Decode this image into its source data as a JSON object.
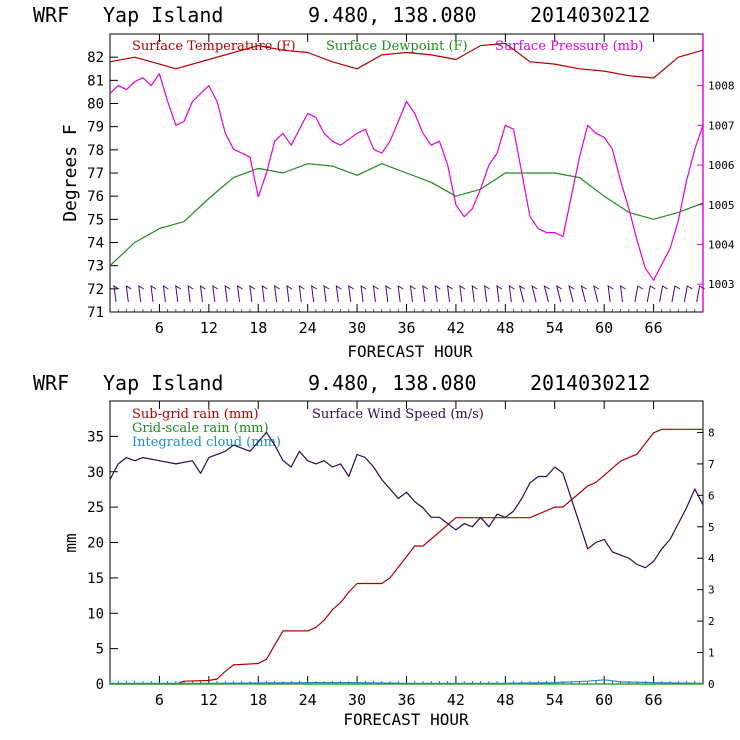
{
  "top": {
    "header": {
      "model": "WRF",
      "location": "Yap Island",
      "coords": "9.480, 138.080",
      "init": "2014030212"
    },
    "xlabel": "FORECAST HOUR",
    "ylabel": "Degrees F",
    "legend": [
      "Surface Temperature (F)",
      "Surface Dewpoint (F)",
      "Surface Pressure (mb)"
    ],
    "colors": {
      "temp": "#b00000",
      "dew": "#1f8a1f",
      "pres": "#e000e0",
      "barb": "#4b0082"
    }
  },
  "bottom": {
    "header": {
      "model": "WRF",
      "location": "Yap Island",
      "coords": "9.480, 138.080",
      "init": "2014030212"
    },
    "xlabel": "FORECAST HOUR",
    "ylabel": "mm",
    "legend": [
      "Sub-grid rain (mm)",
      "Grid-scale rain (mm)",
      "Integrated cloud (mm)",
      "Surface Wind Speed (m/s)"
    ],
    "colors": {
      "subgrid": "#b00000",
      "gridscale": "#1f8a1f",
      "cloud": "#1e90c8",
      "wind": "#2e0a4a"
    }
  },
  "chart_data": [
    {
      "type": "line",
      "title": "WRF Yap Island 9.480, 138.080 2014030212",
      "xlabel": "FORECAST HOUR",
      "ylabel": "Degrees F",
      "xlim": [
        0,
        72
      ],
      "ylim": [
        71,
        83
      ],
      "y2lim": [
        1002.3,
        1009.3
      ],
      "xticks": [
        "6",
        "12",
        "18",
        "24",
        "30",
        "36",
        "42",
        "48",
        "54",
        "60",
        "66"
      ],
      "yticks": [
        "71",
        "72",
        "73",
        "74",
        "75",
        "76",
        "77",
        "78",
        "79",
        "80",
        "81",
        "82"
      ],
      "y2ticks": [
        "1003",
        "1004",
        "1005",
        "1006",
        "1007",
        "1008"
      ],
      "series": [
        {
          "name": "Surface Temperature (F)",
          "axis": "left",
          "x": [
            0,
            3,
            6,
            8,
            12,
            18,
            21,
            24,
            27,
            30,
            33,
            36,
            39,
            42,
            45,
            48,
            51,
            54,
            57,
            60,
            63,
            66,
            69,
            72
          ],
          "y": [
            81.8,
            82.0,
            81.7,
            81.5,
            81.9,
            82.5,
            82.3,
            82.2,
            81.8,
            81.5,
            82.1,
            82.2,
            82.1,
            81.9,
            82.5,
            82.6,
            81.8,
            81.7,
            81.5,
            81.4,
            81.2,
            81.1,
            82.0,
            82.3
          ]
        },
        {
          "name": "Surface Dewpoint (F)",
          "axis": "left",
          "x": [
            0,
            3,
            6,
            9,
            12,
            15,
            18,
            21,
            24,
            27,
            30,
            33,
            36,
            39,
            42,
            45,
            48,
            51,
            54,
            57,
            60,
            63,
            66,
            69,
            72
          ],
          "y": [
            73.0,
            74.0,
            74.6,
            74.9,
            75.9,
            76.8,
            77.2,
            77.0,
            77.4,
            77.3,
            76.9,
            77.4,
            77.0,
            76.6,
            76.0,
            76.3,
            77.0,
            77.0,
            77.0,
            76.8,
            76.0,
            75.3,
            75.0,
            75.3,
            75.7
          ]
        },
        {
          "name": "Surface Pressure (mb)",
          "axis": "right",
          "x": [
            0,
            1,
            2,
            3,
            4,
            5,
            6,
            7,
            8,
            9,
            10,
            12,
            13,
            14,
            15,
            17,
            18,
            19,
            20,
            21,
            22,
            24,
            25,
            26,
            27,
            28,
            30,
            31,
            32,
            33,
            34,
            35,
            36,
            37,
            38,
            39,
            40,
            41,
            42,
            43,
            44,
            45,
            46,
            47,
            48,
            49,
            50,
            51,
            52,
            53,
            54,
            55,
            56,
            57,
            58,
            59,
            60,
            61,
            62,
            63,
            64,
            65,
            66,
            67,
            68,
            69,
            70,
            71,
            72
          ],
          "y": [
            1007.8,
            1008.0,
            1007.9,
            1008.1,
            1008.2,
            1008.0,
            1008.3,
            1007.6,
            1007.0,
            1007.1,
            1007.6,
            1008.0,
            1007.6,
            1006.8,
            1006.4,
            1006.2,
            1005.2,
            1005.8,
            1006.6,
            1006.8,
            1006.5,
            1007.3,
            1007.2,
            1006.8,
            1006.6,
            1006.5,
            1006.8,
            1006.9,
            1006.4,
            1006.3,
            1006.6,
            1007.1,
            1007.6,
            1007.3,
            1006.8,
            1006.5,
            1006.6,
            1006.0,
            1005.0,
            1004.7,
            1004.9,
            1005.4,
            1006.0,
            1006.3,
            1007.0,
            1006.9,
            1005.8,
            1004.7,
            1004.4,
            1004.3,
            1004.3,
            1004.2,
            1005.2,
            1006.2,
            1007.0,
            1006.8,
            1006.7,
            1006.4,
            1005.6,
            1004.9,
            1004.1,
            1003.4,
            1003.1,
            1003.5,
            1003.9,
            1004.6,
            1005.6,
            1006.4,
            1007.0
          ]
        }
      ]
    },
    {
      "type": "line",
      "title": "WRF Yap Island 9.480, 138.080 2014030212",
      "xlabel": "FORECAST HOUR",
      "ylabel": "mm",
      "xlim": [
        0,
        72
      ],
      "ylim": [
        0,
        40
      ],
      "y2lim": [
        0,
        9
      ],
      "xticks": [
        "6",
        "12",
        "18",
        "24",
        "30",
        "36",
        "42",
        "48",
        "54",
        "60",
        "66"
      ],
      "yticks": [
        "0",
        "5",
        "10",
        "15",
        "20",
        "25",
        "30",
        "35"
      ],
      "y2ticks": [
        "0",
        "1",
        "2",
        "3",
        "4",
        "5",
        "6",
        "7",
        "8"
      ],
      "series": [
        {
          "name": "Sub-grid rain (mm)",
          "axis": "left",
          "x": [
            0,
            8,
            9,
            12,
            13,
            14,
            15,
            18,
            19,
            20,
            21,
            24,
            25,
            26,
            27,
            28,
            29,
            30,
            33,
            34,
            35,
            36,
            37,
            38,
            39,
            40,
            41,
            42,
            45,
            48,
            51,
            54,
            55,
            56,
            57,
            58,
            59,
            60,
            61,
            62,
            63,
            64,
            65,
            66,
            67,
            68,
            72
          ],
          "y": [
            0,
            0,
            0.4,
            0.5,
            0.7,
            1.8,
            2.7,
            2.9,
            3.5,
            5.5,
            7.5,
            7.5,
            8.0,
            9.0,
            10.5,
            11.5,
            13.0,
            14.2,
            14.2,
            15.0,
            16.5,
            18.0,
            19.5,
            19.5,
            20.5,
            21.5,
            22.5,
            23.5,
            23.5,
            23.5,
            23.5,
            25.0,
            25.0,
            26.0,
            27.0,
            28.0,
            28.5,
            29.5,
            30.5,
            31.5,
            32.0,
            32.5,
            34.0,
            35.5,
            36.0,
            36.0,
            36.0
          ]
        },
        {
          "name": "Grid-scale rain (mm)",
          "axis": "left",
          "x": [
            0,
            72
          ],
          "y": [
            0,
            0
          ]
        },
        {
          "name": "Integrated cloud (mm)",
          "axis": "left",
          "x": [
            0,
            12,
            24,
            30,
            36,
            48,
            54,
            58,
            60,
            62,
            66,
            72
          ],
          "y": [
            0.1,
            0.1,
            0.2,
            0.2,
            0.1,
            0.1,
            0.2,
            0.4,
            0.6,
            0.3,
            0.2,
            0.1
          ]
        },
        {
          "name": "Surface Wind Speed (m/s)",
          "axis": "right",
          "x": [
            0,
            1,
            2,
            3,
            4,
            6,
            8,
            10,
            11,
            12,
            14,
            15,
            16,
            17,
            18,
            19,
            20,
            21,
            22,
            23,
            24,
            25,
            26,
            27,
            28,
            29,
            30,
            31,
            32,
            33,
            34,
            35,
            36,
            37,
            38,
            39,
            40,
            41,
            42,
            43,
            44,
            45,
            46,
            47,
            48,
            49,
            50,
            51,
            52,
            53,
            54,
            55,
            56,
            57,
            58,
            59,
            60,
            61,
            62,
            63,
            64,
            65,
            66,
            67,
            68,
            69,
            70,
            71,
            72
          ],
          "y": [
            6.5,
            7.0,
            7.2,
            7.1,
            7.2,
            7.1,
            7.0,
            7.1,
            6.7,
            7.2,
            7.4,
            7.6,
            7.5,
            7.4,
            7.7,
            8.0,
            7.6,
            7.1,
            6.9,
            7.4,
            7.1,
            7.0,
            7.1,
            6.9,
            7.0,
            6.6,
            7.3,
            7.2,
            6.9,
            6.5,
            6.2,
            5.9,
            6.1,
            5.8,
            5.6,
            5.3,
            5.3,
            5.1,
            4.9,
            5.1,
            5.0,
            5.3,
            5.0,
            5.4,
            5.3,
            5.5,
            5.9,
            6.4,
            6.6,
            6.6,
            6.9,
            6.7,
            5.9,
            5.1,
            4.3,
            4.5,
            4.6,
            4.2,
            4.1,
            4.0,
            3.8,
            3.7,
            3.9,
            4.3,
            4.6,
            5.1,
            5.6,
            6.2,
            5.7
          ]
        }
      ]
    }
  ]
}
